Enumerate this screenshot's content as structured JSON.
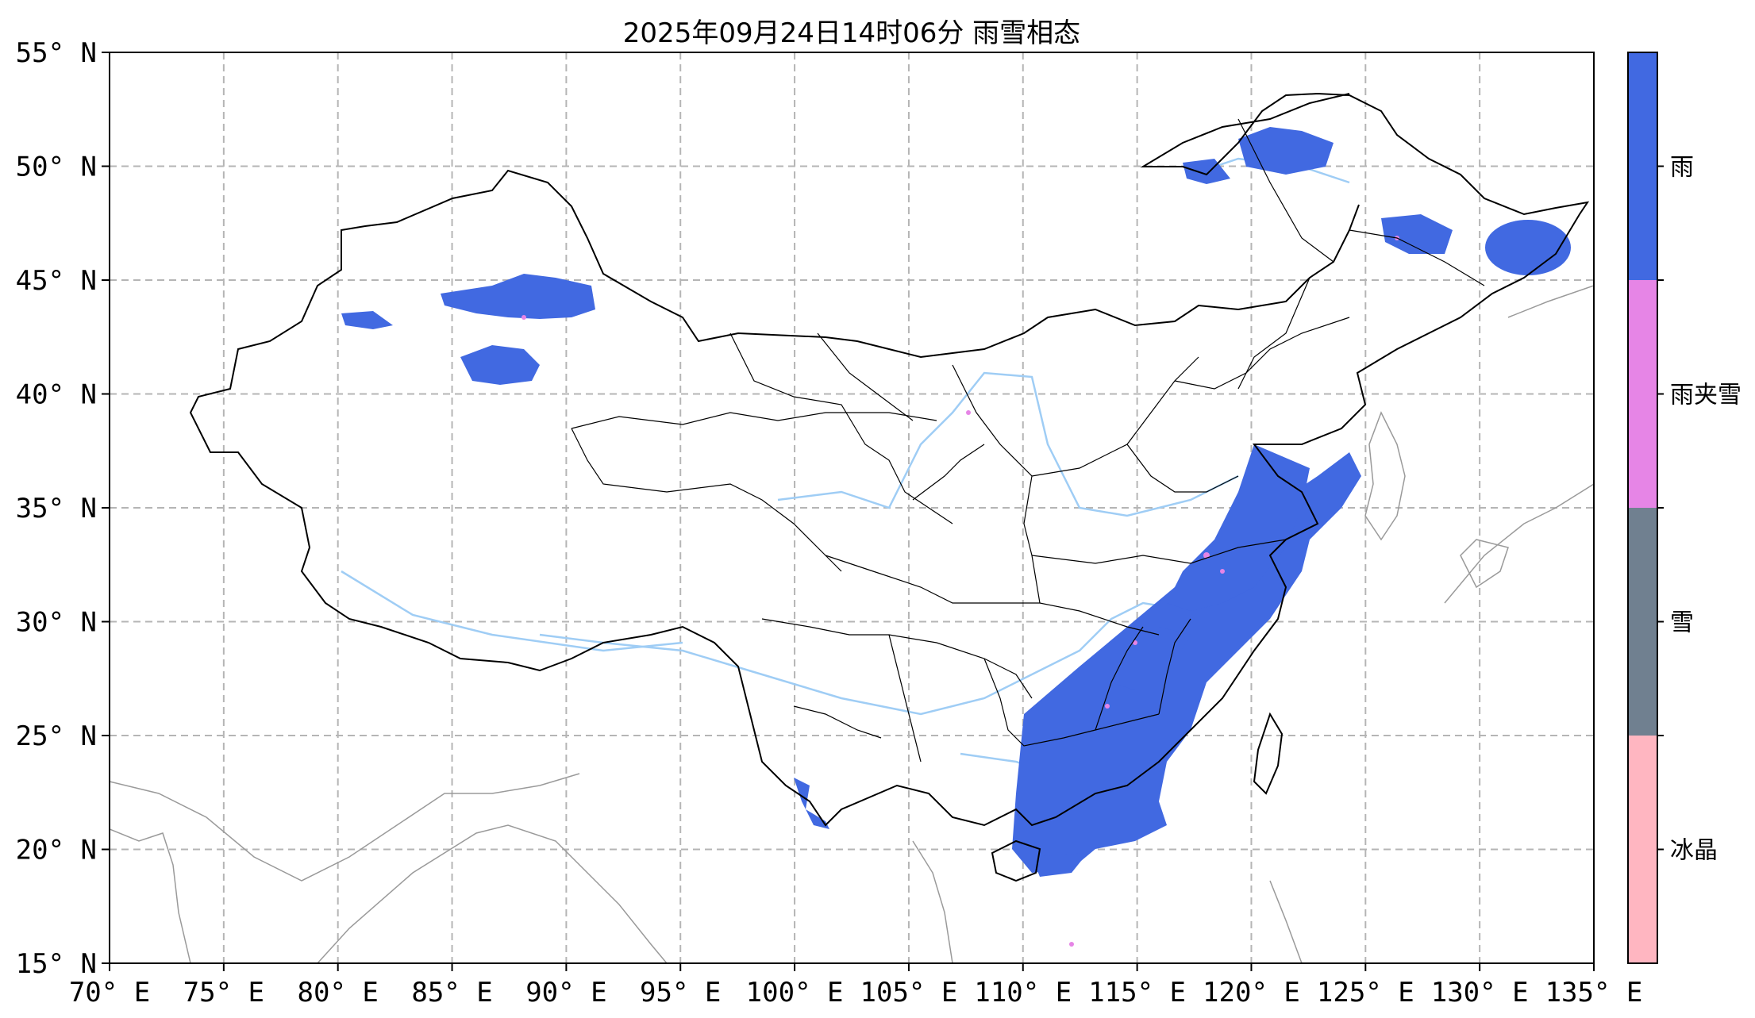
{
  "title": "2025年09月24日14时06分 雨雪相态",
  "map": {
    "lon_range": [
      70,
      135
    ],
    "lat_range": [
      15,
      55
    ],
    "grid": true,
    "x_ticks": [
      {
        "value": 70,
        "label": "70° E"
      },
      {
        "value": 75,
        "label": "75° E"
      },
      {
        "value": 80,
        "label": "80° E"
      },
      {
        "value": 85,
        "label": "85° E"
      },
      {
        "value": 90,
        "label": "90° E"
      },
      {
        "value": 95,
        "label": "95° E"
      },
      {
        "value": 100,
        "label": "100° E"
      },
      {
        "value": 105,
        "label": "105° E"
      },
      {
        "value": 110,
        "label": "110° E"
      },
      {
        "value": 115,
        "label": "115° E"
      },
      {
        "value": 120,
        "label": "120° E"
      },
      {
        "value": 125,
        "label": "125° E"
      },
      {
        "value": 130,
        "label": "130° E"
      },
      {
        "value": 135,
        "label": "135° E"
      }
    ],
    "y_ticks": [
      {
        "value": 55,
        "label": "55° N"
      },
      {
        "value": 50,
        "label": "50° N"
      },
      {
        "value": 45,
        "label": "45° N"
      },
      {
        "value": 40,
        "label": "40° N"
      },
      {
        "value": 35,
        "label": "35° N"
      },
      {
        "value": 30,
        "label": "30° N"
      },
      {
        "value": 25,
        "label": "25° N"
      },
      {
        "value": 20,
        "label": "20° N"
      },
      {
        "value": 15,
        "label": "15° N"
      }
    ]
  },
  "legend": {
    "placement": "right",
    "items": [
      {
        "label": "雨",
        "color": "#4169e1"
      },
      {
        "label": "雨夹雪",
        "color": "#e685e6"
      },
      {
        "label": "雪",
        "color": "#708090"
      },
      {
        "label": "冰晶",
        "color": "#ffb6c1"
      }
    ]
  },
  "colors": {
    "rain": "#4169e1",
    "sleet": "#e685e6",
    "river": "#9fcdf5",
    "grid": "#b5b5b5",
    "border": "#000000"
  }
}
